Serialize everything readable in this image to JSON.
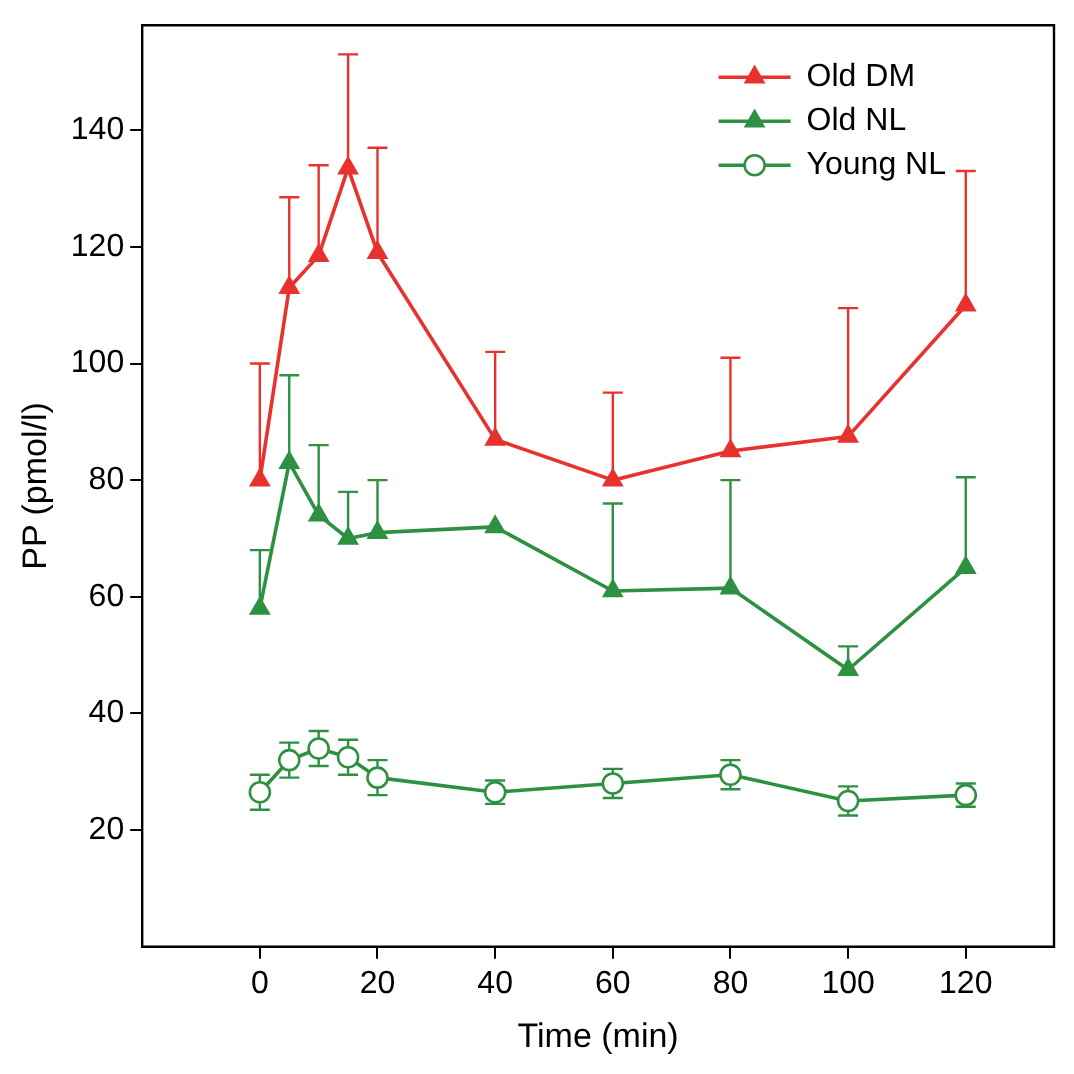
{
  "chart_data": {
    "type": "line",
    "xlabel": "Time (min)",
    "ylabel": "PP (pmol/l)",
    "x": [
      0,
      5,
      10,
      15,
      20,
      40,
      60,
      80,
      100,
      120
    ],
    "xlim": [
      -20,
      135
    ],
    "xticks": [
      0,
      20,
      40,
      60,
      80,
      100,
      120
    ],
    "ylim": [
      0,
      158
    ],
    "yticks": [
      20,
      40,
      60,
      80,
      100,
      120,
      140
    ],
    "grid": false,
    "legend": "top right",
    "line_style": "solid",
    "series": [
      {
        "name": "Old DM",
        "color": "#e8322d",
        "marker": "triangle",
        "values": [
          80,
          113,
          118.5,
          133.5,
          119,
          87,
          80,
          85,
          87.5,
          110
        ],
        "errors": [
          [
            80,
            100
          ],
          [
            113,
            128.5
          ],
          [
            118.5,
            134
          ],
          [
            133.5,
            153
          ],
          [
            119,
            137
          ],
          [
            87,
            102
          ],
          [
            80,
            95
          ],
          [
            85,
            101
          ],
          [
            87.5,
            109.5
          ],
          [
            110,
            133
          ]
        ]
      },
      {
        "name": "Old NL",
        "color": "#2e9142",
        "marker": "triangle",
        "values": [
          58,
          83,
          74,
          70,
          71,
          72,
          61,
          61.5,
          47.5,
          65
        ],
        "errors": [
          [
            58,
            68
          ],
          [
            83,
            98
          ],
          [
            74,
            86
          ],
          [
            70,
            78
          ],
          [
            71,
            80
          ],
          null,
          [
            61,
            76
          ],
          [
            61.5,
            80
          ],
          [
            47.5,
            51.5
          ],
          [
            65,
            80.5
          ]
        ]
      },
      {
        "name": "Young NL",
        "color": "#2e9142",
        "marker": "circle",
        "values": [
          26.5,
          32,
          34,
          32.5,
          29,
          26.5,
          28,
          29.5,
          25,
          26
        ],
        "errors": [
          3,
          3,
          3,
          3,
          3,
          2,
          2.5,
          2.5,
          2.5,
          2
        ]
      }
    ]
  }
}
